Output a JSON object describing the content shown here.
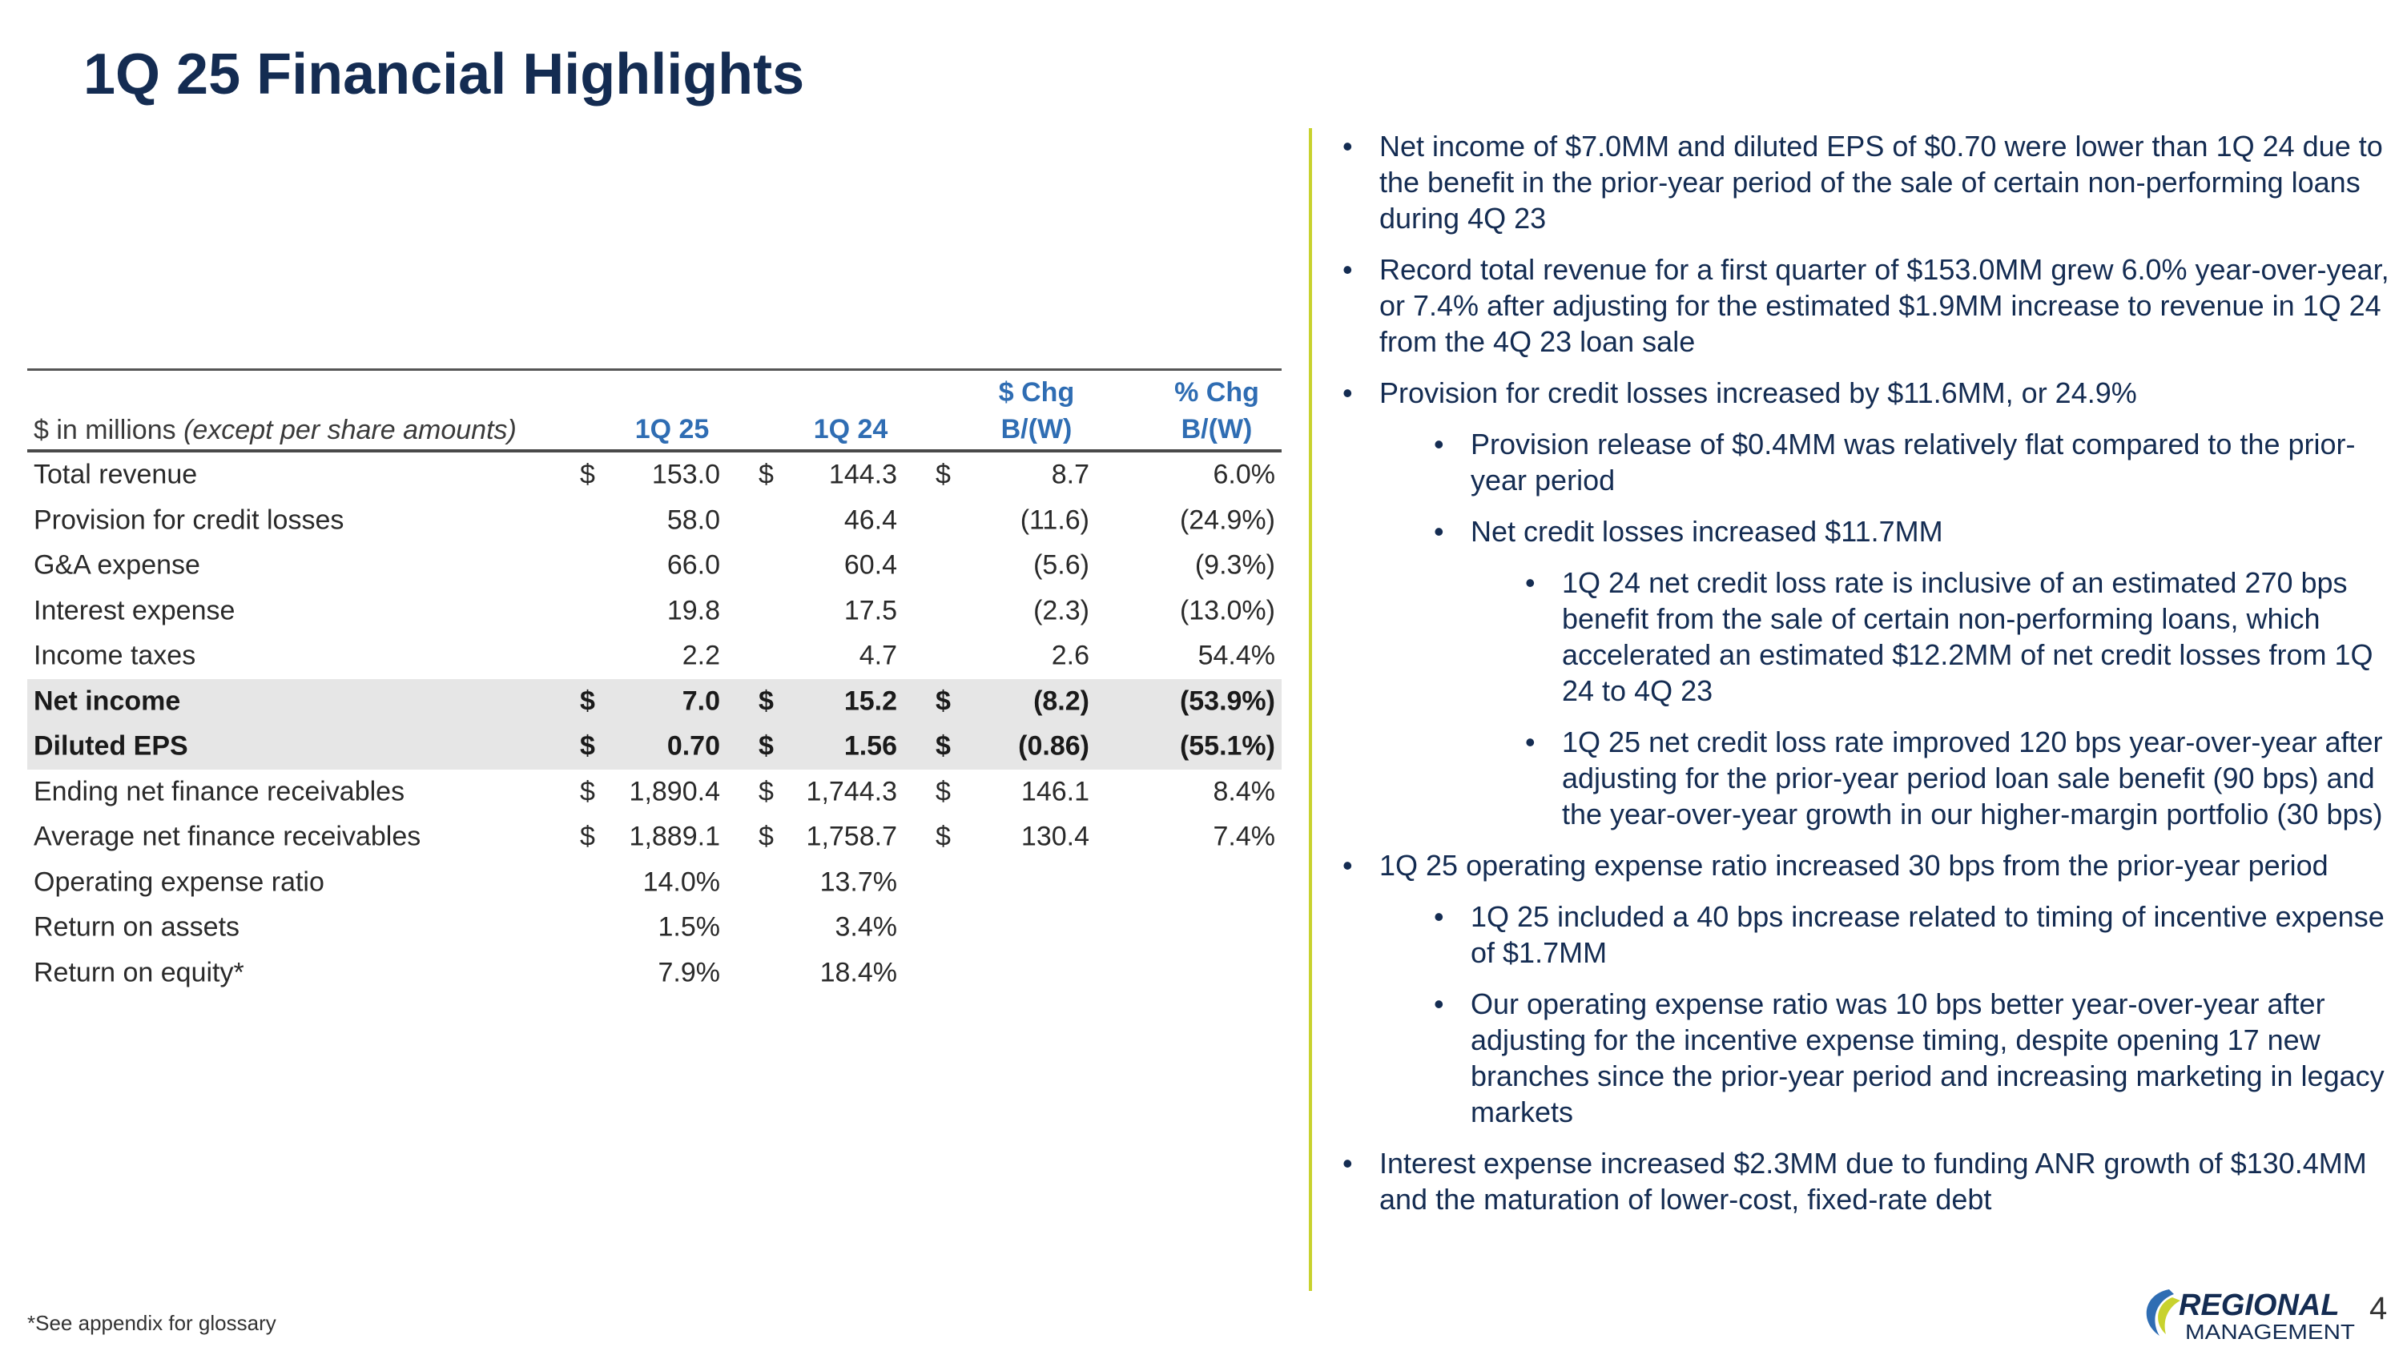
{
  "page": {
    "title": "1Q 25 Financial Highlights",
    "page_number": "4",
    "footnote": "*See appendix for glossary",
    "colors": {
      "navy": "#142c52",
      "accent_blue": "#2f6db3",
      "divider": "#c8d22e",
      "shade": "#e6e6e6"
    }
  },
  "table": {
    "header": {
      "label_prefix": "$ in millions ",
      "label_italic": "(except per share amounts)",
      "col1": "1Q 25",
      "col2": "1Q 24",
      "col3_line1": "$ Chg",
      "col3_line2": "B/(W)",
      "col4_line1": "% Chg",
      "col4_line2": "B/(W)"
    },
    "rows": [
      {
        "label": "Total revenue",
        "d1": "$",
        "v1": "153.0",
        "d2": "$",
        "v2": "144.3",
        "d3": "$",
        "v3": "8.7",
        "v4": "6.0%"
      },
      {
        "label": "Provision for credit losses",
        "d1": "",
        "v1": "58.0",
        "d2": "",
        "v2": "46.4",
        "d3": "",
        "v3": "(11.6)",
        "v4": "(24.9%)"
      },
      {
        "label": "G&A expense",
        "d1": "",
        "v1": "66.0",
        "d2": "",
        "v2": "60.4",
        "d3": "",
        "v3": "(5.6)",
        "v4": "(9.3%)"
      },
      {
        "label": "Interest expense",
        "d1": "",
        "v1": "19.8",
        "d2": "",
        "v2": "17.5",
        "d3": "",
        "v3": "(2.3)",
        "v4": "(13.0%)"
      },
      {
        "label": "Income taxes",
        "d1": "",
        "v1": "2.2",
        "d2": "",
        "v2": "4.7",
        "d3": "",
        "v3": "2.6",
        "v4": "54.4%"
      },
      {
        "label": "Net income",
        "d1": "$",
        "v1": "7.0",
        "d2": "$",
        "v2": "15.2",
        "d3": "$",
        "v3": "(8.2)",
        "v4": "(53.9%)"
      },
      {
        "label": "Diluted EPS",
        "d1": "$",
        "v1": "0.70",
        "d2": "$",
        "v2": "1.56",
        "d3": "$",
        "v3": "(0.86)",
        "v4": "(55.1%)"
      },
      {
        "label": "Ending net finance receivables",
        "d1": "$",
        "v1": "1,890.4",
        "d2": "$",
        "v2": "1,744.3",
        "d3": "$",
        "v3": "146.1",
        "v4": "8.4%"
      },
      {
        "label": "Average net finance receivables",
        "d1": "$",
        "v1": "1,889.1",
        "d2": "$",
        "v2": "1,758.7",
        "d3": "$",
        "v3": "130.4",
        "v4": "7.4%"
      },
      {
        "label": "Operating expense ratio",
        "d1": "",
        "v1": "14.0%",
        "d2": "",
        "v2": "13.7%",
        "d3": "",
        "v3": "",
        "v4": ""
      },
      {
        "label": "Return on assets",
        "d1": "",
        "v1": "1.5%",
        "d2": "",
        "v2": "3.4%",
        "d3": "",
        "v3": "",
        "v4": ""
      },
      {
        "label": "Return on equity*",
        "d1": "",
        "v1": "7.9%",
        "d2": "",
        "v2": "18.4%",
        "d3": "",
        "v3": "",
        "v4": ""
      }
    ]
  },
  "bullets": [
    "Net income of $7.0MM and diluted EPS of $0.70 were lower than 1Q 24 due to the benefit in the prior-year period of the sale of certain non-performing loans during 4Q 23",
    "Record total revenue for a first quarter of $153.0MM grew 6.0% year-over-year, or 7.4% after adjusting for the estimated $1.9MM increase to revenue in 1Q 24 from the 4Q 23 loan sale",
    "Provision for credit losses increased by $11.6MM, or 24.9%",
    "Provision release of $0.4MM was relatively flat compared to the prior-year period",
    "Net credit losses increased $11.7MM",
    "1Q 24 net credit loss rate is inclusive of an estimated 270 bps benefit from the sale of certain non-performing loans, which accelerated an estimated $12.2MM of net credit losses from 1Q 24 to 4Q 23",
    "1Q 25 net credit loss rate improved 120 bps year-over-year after adjusting for the prior-year period loan sale benefit (90 bps) and the year-over-year growth in our higher-margin portfolio (30 bps)",
    "1Q 25 operating expense ratio increased 30 bps from the prior-year period",
    "1Q 25 included a 40 bps increase related to timing of incentive expense of $1.7MM",
    "Our operating expense ratio was 10 bps better year-over-year after adjusting for the incentive expense timing, despite opening 17 new branches since the prior-year period and increasing marketing in legacy markets",
    "Interest expense increased $2.3MM due to funding ANR growth of $130.4MM and the maturation of lower-cost, fixed-rate debt"
  ],
  "logo": {
    "name": "regional-management-logo",
    "line1": "REGIONAL",
    "line2": "MANAGEMENT"
  }
}
